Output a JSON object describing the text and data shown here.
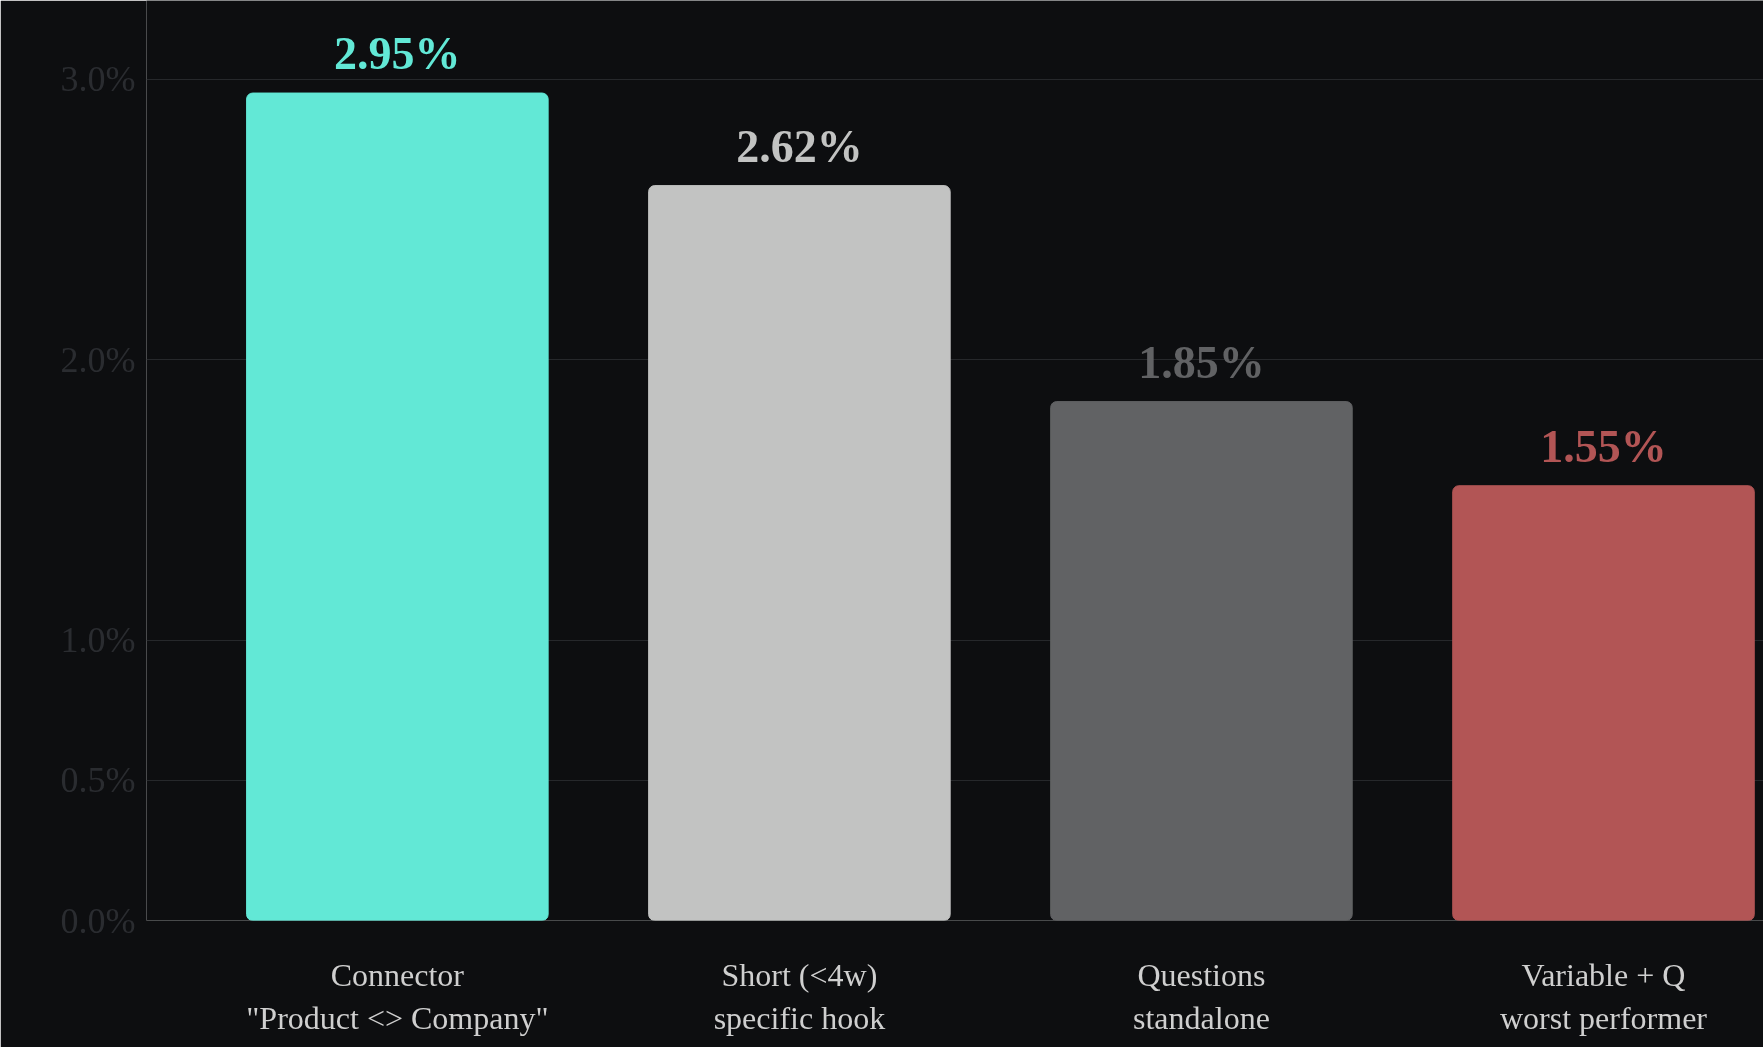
{
  "chart_data": {
    "type": "bar",
    "categories": [
      "Connector\n\"Product <> Company\"",
      "Short (<4w)\nspecific hook",
      "Questions\nstandalone",
      "Variable + Q\nworst performer"
    ],
    "values": [
      2.95,
      2.62,
      1.85,
      1.55
    ],
    "colors": [
      "#62e8d6",
      "#c2c3c2",
      "#616264",
      "#b25555"
    ],
    "value_labels": [
      "2.95%",
      "2.62%",
      "1.85%",
      "1.55%"
    ],
    "ylim": [
      0,
      3.28
    ],
    "yticks": [
      {
        "value": 0,
        "label": "0.0%"
      },
      {
        "value": 0.5,
        "label": "0.5%"
      },
      {
        "value": 1.0,
        "label": "1.0%"
      },
      {
        "value": 2.0,
        "label": "2.0%"
      },
      {
        "value": 3.0,
        "label": "3.0%"
      }
    ],
    "grid": "y"
  }
}
